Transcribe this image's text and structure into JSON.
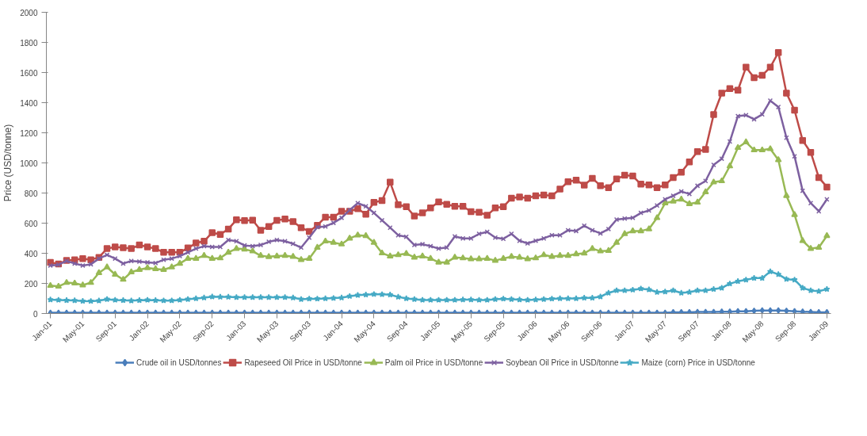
{
  "chart_data": {
    "type": "line",
    "ylabel": "Price (USD/tonne)",
    "ylim": [
      0,
      2000
    ],
    "yticks": [
      0,
      200,
      400,
      600,
      800,
      1000,
      1200,
      1400,
      1600,
      1800,
      2000
    ],
    "grid": false,
    "legend": "bottom",
    "line_style": "solid",
    "categories": [
      "Jan-01",
      null,
      null,
      null,
      "May-01",
      null,
      null,
      null,
      "Sep-01",
      null,
      null,
      null,
      "Jan-02",
      null,
      null,
      null,
      "May-02",
      null,
      null,
      null,
      "Sep-02",
      null,
      null,
      null,
      "Jan-03",
      null,
      null,
      null,
      "May-03",
      null,
      null,
      null,
      "Sep-03",
      null,
      null,
      null,
      "Jan-04",
      null,
      null,
      null,
      "May-04",
      null,
      null,
      null,
      "Sep-04",
      null,
      null,
      null,
      "Jan-05",
      null,
      null,
      null,
      "May-05",
      null,
      null,
      null,
      "Sep-05",
      null,
      null,
      null,
      "Jan-06",
      null,
      null,
      null,
      "May-06",
      null,
      null,
      null,
      "Sep-06",
      null,
      null,
      null,
      "Jan-07",
      null,
      null,
      null,
      "May-07",
      null,
      null,
      null,
      "Sep-07",
      null,
      null,
      null,
      "Jan-08",
      null,
      null,
      null,
      "May-08",
      null,
      null,
      null,
      "Sep-08",
      null,
      null,
      null,
      "Jan-09"
    ],
    "series": [
      {
        "name": "Crude oil in USD/tonnes",
        "color": "#4a7ebb",
        "marker": "diamond",
        "values": [
          5,
          5,
          5,
          5,
          5,
          5,
          5,
          5,
          5,
          5,
          5,
          5,
          5,
          5,
          5,
          5,
          5,
          5,
          5,
          5,
          5,
          5,
          5,
          5,
          5,
          5,
          5,
          5,
          5,
          5,
          5,
          5,
          5,
          5,
          5,
          5,
          5,
          5,
          5,
          5,
          5,
          5,
          5,
          5,
          5,
          5,
          5,
          5,
          5,
          5,
          5,
          5,
          5,
          5,
          5,
          5,
          5,
          5,
          5,
          5,
          5,
          5,
          5,
          5,
          5,
          5,
          5,
          5,
          5,
          5,
          5,
          5,
          5,
          5,
          5,
          5,
          5,
          8,
          8,
          8,
          10,
          10,
          10,
          12,
          12,
          15,
          15,
          18,
          20,
          20,
          20,
          18,
          15,
          12,
          10,
          8,
          8
        ]
      },
      {
        "name": "Rapeseed Oil Price in USD/tonne",
        "color": "#be4b48",
        "marker": "square",
        "values": [
          340,
          329,
          352,
          357,
          365,
          357,
          373,
          431,
          442,
          437,
          431,
          455,
          442,
          431,
          406,
          406,
          406,
          435,
          468,
          480,
          537,
          525,
          561,
          622,
          617,
          620,
          553,
          578,
          619,
          627,
          610,
          570,
          545,
          586,
          640,
          640,
          679,
          679,
          696,
          659,
          738,
          750,
          872,
          722,
          709,
          647,
          668,
          701,
          741,
          725,
          712,
          712,
          676,
          673,
          652,
          701,
          709,
          766,
          774,
          766,
          782,
          787,
          782,
          826,
          875,
          885,
          853,
          898,
          849,
          835,
          893,
          918,
          913,
          859,
          854,
          835,
          854,
          903,
          938,
          1006,
          1075,
          1090,
          1321,
          1463,
          1493,
          1483,
          1635,
          1566,
          1581,
          1635,
          1733,
          1463,
          1350,
          1149,
          1070,
          903,
          840
        ]
      },
      {
        "name": "Palm oil Price in USD/tonne",
        "color": "#98b954",
        "marker": "triangle",
        "values": [
          185,
          180,
          205,
          201,
          188,
          205,
          270,
          308,
          259,
          226,
          275,
          291,
          303,
          296,
          291,
          308,
          332,
          365,
          365,
          384,
          365,
          368,
          406,
          431,
          427,
          414,
          384,
          377,
          381,
          384,
          378,
          357,
          365,
          438,
          480,
          471,
          460,
          499,
          520,
          516,
          471,
          401,
          381,
          389,
          398,
          373,
          381,
          365,
          340,
          340,
          373,
          368,
          362,
          362,
          365,
          352,
          365,
          378,
          373,
          362,
          368,
          389,
          378,
          384,
          384,
          395,
          400,
          431,
          414,
          417,
          471,
          529,
          548,
          548,
          561,
          635,
          733,
          745,
          758,
          728,
          738,
          807,
          872,
          880,
          979,
          1101,
          1138,
          1085,
          1085,
          1093,
          1020,
          782,
          656,
          483,
          431,
          438,
          516
        ]
      },
      {
        "name": "Soybean Oil Price in USD/tonne",
        "color": "#7d60a0",
        "marker": "x",
        "values": [
          319,
          324,
          349,
          332,
          319,
          327,
          365,
          389,
          365,
          332,
          349,
          345,
          340,
          335,
          357,
          365,
          381,
          406,
          431,
          447,
          442,
          442,
          488,
          480,
          452,
          447,
          455,
          476,
          488,
          480,
          463,
          438,
          504,
          574,
          578,
          602,
          635,
          687,
          733,
          712,
          668,
          619,
          570,
          520,
          509,
          455,
          460,
          447,
          431,
          438,
          512,
          499,
          499,
          529,
          542,
          504,
          496,
          529,
          483,
          466,
          483,
          499,
          520,
          520,
          553,
          548,
          583,
          553,
          532,
          561,
          624,
          630,
          635,
          668,
          684,
          717,
          758,
          782,
          810,
          794,
          848,
          880,
          987,
          1028,
          1142,
          1311,
          1317,
          1290,
          1322,
          1413,
          1371,
          1167,
          1044,
          815,
          733,
          679,
          758
        ]
      },
      {
        "name": "Maize (corn) Price in USD/tonne",
        "color": "#46aac5",
        "marker": "star",
        "values": [
          92,
          90,
          88,
          87,
          83,
          82,
          85,
          95,
          90,
          88,
          85,
          88,
          90,
          88,
          86,
          86,
          90,
          95,
          100,
          105,
          112,
          110,
          110,
          108,
          108,
          108,
          108,
          108,
          108,
          108,
          105,
          95,
          98,
          98,
          100,
          102,
          105,
          115,
          122,
          125,
          128,
          127,
          125,
          110,
          100,
          95,
          90,
          90,
          90,
          90,
          90,
          92,
          92,
          90,
          90,
          95,
          98,
          95,
          92,
          90,
          92,
          95,
          98,
          100,
          100,
          100,
          104,
          104,
          112,
          137,
          153,
          153,
          157,
          165,
          159,
          142,
          145,
          153,
          137,
          142,
          153,
          153,
          162,
          170,
          198,
          214,
          224,
          235,
          235,
          279,
          260,
          228,
          224,
          170,
          153,
          148,
          162
        ]
      }
    ]
  }
}
